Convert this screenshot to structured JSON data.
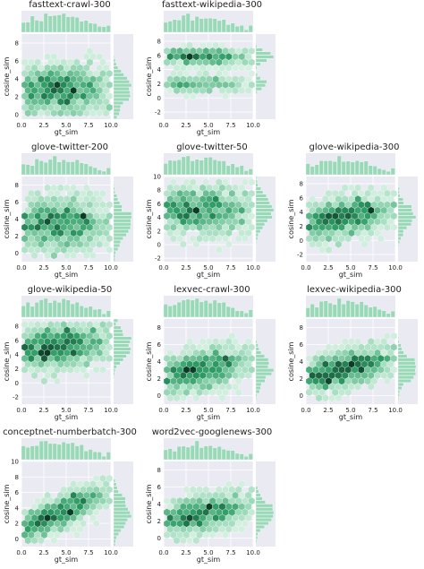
{
  "chart_data": {
    "type": "hexbin_jointplot_grid",
    "xlabel": "gt_sim",
    "ylabel": "cosine_sim",
    "xlim": [
      0,
      10
    ],
    "xticks": [
      "0.0",
      "2.5",
      "5.0",
      "7.5",
      "10.0"
    ],
    "grid": true,
    "colors": {
      "hex_dark": "#0b3d26",
      "hex_mid": "#2f9d66",
      "hex_light": "#e7f6ee",
      "hist": "#9ad9b8",
      "panel_bg": "#eaeaf2",
      "grid": "#ffffff"
    },
    "panels": [
      {
        "name": "fasttext-crawl-300",
        "ylim": [
          -0.5,
          9
        ],
        "yticks": [
          "0",
          "2",
          "4",
          "6",
          "8"
        ],
        "bands": [
          {
            "y": 2.0,
            "spread": 1.2,
            "w": 1.0
          },
          {
            "y": 4.0,
            "spread": 1.0,
            "w": 0.6
          }
        ],
        "slope": 0.0
      },
      {
        "name": "fasttext-wikipedia-300",
        "ylim": [
          -3,
          9
        ],
        "yticks": [
          "-2",
          "0",
          "2",
          "4",
          "6",
          "8"
        ],
        "bands": [
          {
            "y": 5.8,
            "spread": 0.6,
            "w": 1.0
          },
          {
            "y": 2.0,
            "spread": 0.6,
            "w": 0.7
          }
        ],
        "slope": 0.0
      },
      {
        "name": "glove-twitter-200",
        "ylim": [
          -1,
          9
        ],
        "yticks": [
          "0",
          "2",
          "4",
          "6",
          "8"
        ],
        "bands": [
          {
            "y": 3.5,
            "spread": 1.6,
            "w": 1.0
          }
        ],
        "slope": 0.0
      },
      {
        "name": "glove-twitter-50",
        "ylim": [
          -2.5,
          10
        ],
        "yticks": [
          "-2",
          "0",
          "2",
          "4",
          "6",
          "8",
          "10"
        ],
        "bands": [
          {
            "y": 5.0,
            "spread": 1.8,
            "w": 1.0
          }
        ],
        "slope": 0.0
      },
      {
        "name": "glove-wikipedia-300",
        "ylim": [
          -3,
          9
        ],
        "yticks": [
          "-2",
          "0",
          "2",
          "4",
          "6",
          "8"
        ],
        "bands": [
          {
            "y": 2.2,
            "spread": 1.4,
            "w": 1.0
          }
        ],
        "slope": 0.25
      },
      {
        "name": "glove-wikipedia-50",
        "ylim": [
          -3,
          9
        ],
        "yticks": [
          "-2",
          "0",
          "2",
          "4",
          "6",
          "8"
        ],
        "bands": [
          {
            "y": 4.5,
            "spread": 1.6,
            "w": 1.0
          }
        ],
        "slope": 0.15
      },
      {
        "name": "lexvec-crawl-300",
        "ylim": [
          -1,
          9
        ],
        "yticks": [
          "0",
          "2",
          "4",
          "6",
          "8"
        ],
        "bands": [
          {
            "y": 2.0,
            "spread": 1.2,
            "w": 1.0
          }
        ],
        "slope": 0.25
      },
      {
        "name": "lexvec-wikipedia-300",
        "ylim": [
          -1,
          9
        ],
        "yticks": [
          "0",
          "2",
          "4",
          "6",
          "8"
        ],
        "bands": [
          {
            "y": 2.0,
            "spread": 1.1,
            "w": 1.0
          }
        ],
        "slope": 0.25
      },
      {
        "name": "conceptnet-numberbatch-300",
        "ylim": [
          -1,
          10
        ],
        "yticks": [
          "0",
          "2",
          "4",
          "6",
          "8",
          "10"
        ],
        "bands": [
          {
            "y": 1.0,
            "spread": 1.1,
            "w": 1.0
          }
        ],
        "slope": 0.55
      },
      {
        "name": "word2vec-googlenews-300",
        "ylim": [
          -1,
          9
        ],
        "yticks": [
          "0",
          "2",
          "4",
          "6",
          "8"
        ],
        "bands": [
          {
            "y": 2.0,
            "spread": 1.1,
            "w": 1.0
          }
        ],
        "slope": 0.2
      }
    ]
  }
}
